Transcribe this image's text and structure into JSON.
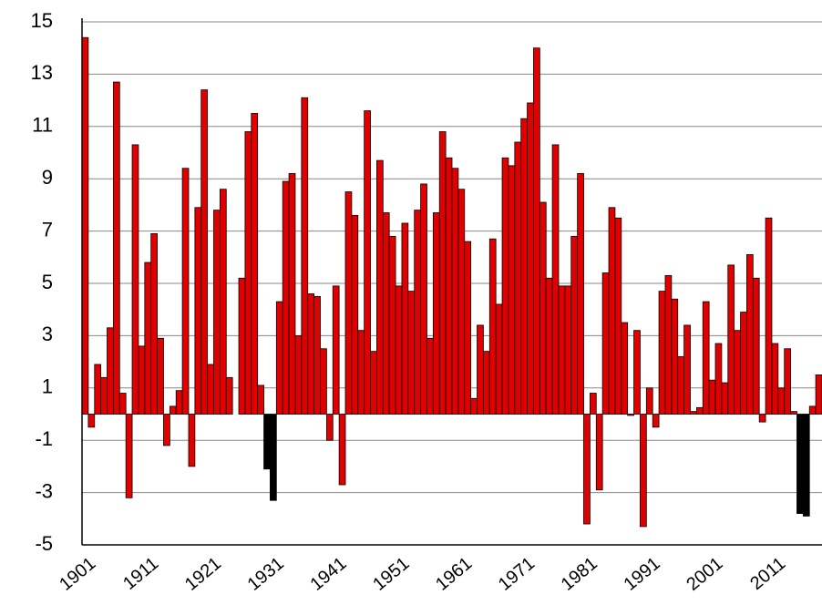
{
  "chart_data": {
    "type": "bar",
    "categories": [
      "1901",
      null,
      null,
      null,
      null,
      null,
      null,
      null,
      null,
      null,
      "1911",
      null,
      null,
      null,
      null,
      null,
      null,
      null,
      null,
      null,
      "1921",
      null,
      null,
      null,
      null,
      null,
      null,
      null,
      null,
      null,
      "1931",
      null,
      null,
      null,
      null,
      null,
      null,
      null,
      null,
      null,
      "1941",
      null,
      null,
      null,
      null,
      null,
      null,
      null,
      null,
      null,
      "1951",
      null,
      null,
      null,
      null,
      null,
      null,
      null,
      null,
      null,
      "1961",
      null,
      null,
      null,
      null,
      null,
      null,
      null,
      null,
      null,
      "1971",
      null,
      null,
      null,
      null,
      null,
      null,
      null,
      null,
      null,
      "1981",
      null,
      null,
      null,
      null,
      null,
      null,
      null,
      null,
      null,
      "1991",
      null,
      null,
      null,
      null,
      null,
      null,
      null,
      null,
      null,
      "2001",
      null,
      null,
      null,
      null,
      null,
      null,
      null,
      null,
      null,
      "2011",
      null,
      null,
      null,
      null,
      null,
      null,
      null
    ],
    "values": [
      14.4,
      -0.5,
      1.9,
      1.4,
      3.3,
      12.7,
      0.8,
      -3.2,
      10.3,
      2.6,
      5.8,
      6.9,
      2.9,
      -1.2,
      0.3,
      0.9,
      9.4,
      -2.0,
      7.9,
      12.4,
      1.9,
      7.8,
      8.6,
      1.4,
      0,
      5.2,
      10.8,
      11.5,
      1.1,
      -2.1,
      -3.3,
      4.3,
      8.9,
      9.2,
      3.0,
      12.1,
      4.6,
      4.5,
      2.5,
      -1.0,
      4.9,
      -2.7,
      8.5,
      7.6,
      3.2,
      11.6,
      2.4,
      9.7,
      7.7,
      6.8,
      4.9,
      7.3,
      4.7,
      7.8,
      8.8,
      2.9,
      7.7,
      10.8,
      9.8,
      9.4,
      8.6,
      6.6,
      0.6,
      3.4,
      2.4,
      6.7,
      4.2,
      9.8,
      9.5,
      10.4,
      11.3,
      11.9,
      14.0,
      8.1,
      5.2,
      10.3,
      4.9,
      4.9,
      6.8,
      9.2,
      -4.2,
      0.8,
      -2.9,
      5.4,
      7.9,
      7.5,
      3.5,
      -0.05,
      3.2,
      -4.3,
      1.0,
      -0.5,
      4.7,
      5.3,
      4.4,
      2.2,
      3.4,
      0.1,
      0.25,
      4.3,
      1.3,
      2.7,
      1.2,
      5.7,
      3.2,
      3.9,
      6.1,
      5.2,
      -0.3,
      7.5,
      2.7,
      1.0,
      2.5,
      0.1,
      -3.8,
      -3.9,
      0.3,
      1.5
    ],
    "colors": [
      "#e00000",
      "#e00000",
      "#e00000",
      "#e00000",
      "#e00000",
      "#e00000",
      "#e00000",
      "#e00000",
      "#e00000",
      "#e00000",
      "#e00000",
      "#e00000",
      "#e00000",
      "#e00000",
      "#e00000",
      "#e00000",
      "#e00000",
      "#e00000",
      "#e00000",
      "#e00000",
      "#e00000",
      "#e00000",
      "#e00000",
      "#e00000",
      "#e00000",
      "#e00000",
      "#e00000",
      "#e00000",
      "#e00000",
      "#000000",
      "#000000",
      "#e00000",
      "#e00000",
      "#e00000",
      "#e00000",
      "#e00000",
      "#e00000",
      "#e00000",
      "#e00000",
      "#e00000",
      "#e00000",
      "#e00000",
      "#e00000",
      "#e00000",
      "#e00000",
      "#e00000",
      "#e00000",
      "#e00000",
      "#e00000",
      "#e00000",
      "#e00000",
      "#e00000",
      "#e00000",
      "#e00000",
      "#e00000",
      "#e00000",
      "#e00000",
      "#e00000",
      "#e00000",
      "#e00000",
      "#e00000",
      "#e00000",
      "#e00000",
      "#e00000",
      "#e00000",
      "#e00000",
      "#e00000",
      "#e00000",
      "#e00000",
      "#e00000",
      "#e00000",
      "#e00000",
      "#e00000",
      "#e00000",
      "#e00000",
      "#e00000",
      "#e00000",
      "#e00000",
      "#e00000",
      "#e00000",
      "#e00000",
      "#e00000",
      "#e00000",
      "#e00000",
      "#e00000",
      "#e00000",
      "#e00000",
      "#e00000",
      "#e00000",
      "#e00000",
      "#e00000",
      "#e00000",
      "#e00000",
      "#e00000",
      "#e00000",
      "#e00000",
      "#e00000",
      "#e00000",
      "#e00000",
      "#e00000",
      "#e00000",
      "#e00000",
      "#e00000",
      "#e00000",
      "#e00000",
      "#e00000",
      "#e00000",
      "#e00000",
      "#e00000",
      "#e00000",
      "#e00000",
      "#e00000",
      "#e00000",
      "#e00000",
      "#000000",
      "#000000",
      "#e00000",
      "#e00000"
    ],
    "ylim": [
      -5,
      15
    ],
    "yticks": [
      -5,
      -3,
      -1,
      1,
      3,
      5,
      7,
      9,
      11,
      13,
      15
    ],
    "grid": true
  }
}
